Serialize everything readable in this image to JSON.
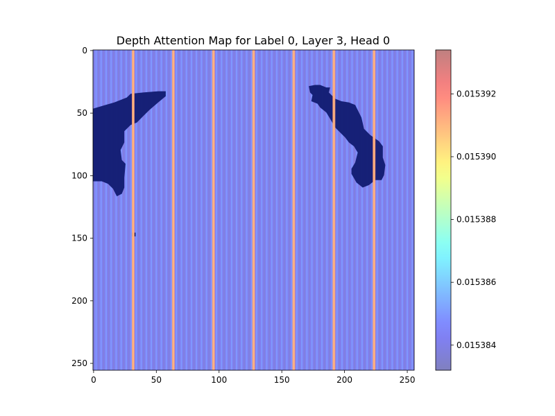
{
  "chart_data": {
    "type": "heatmap",
    "title": "Depth Attention Map for Label 0, Layer 3, Head 0",
    "xlabel": "",
    "ylabel": "",
    "xlim": [
      0,
      256
    ],
    "ylim": [
      256,
      0
    ],
    "x_ticks": [
      0,
      50,
      100,
      150,
      200,
      250
    ],
    "y_ticks": [
      0,
      50,
      100,
      150,
      200,
      250
    ],
    "colorbar": {
      "colormap": "jet",
      "alpha": 0.5,
      "range": [
        0.0153832,
        0.0153934
      ],
      "ticks": [
        0.015384,
        0.015386,
        0.015388,
        0.01539,
        0.015392
      ],
      "tick_labels": [
        "0.015384",
        "0.015386",
        "0.015388",
        "0.015390",
        "0.015392"
      ]
    },
    "background_color": "#7a86f0",
    "stripe_period": 4,
    "stripe_values": [
      0.0153838,
      0.015385,
      0.0153842
    ],
    "peak_columns": [
      32,
      64,
      96,
      128,
      160,
      192,
      224
    ],
    "peak_value": 0.015391,
    "dark_regions": [
      {
        "name": "left-blob",
        "color": "#101a70",
        "points": [
          [
            0,
            47
          ],
          [
            10,
            44
          ],
          [
            17,
            42
          ],
          [
            27,
            38
          ],
          [
            30,
            35
          ],
          [
            40,
            34
          ],
          [
            52,
            33
          ],
          [
            58,
            33
          ],
          [
            58,
            37
          ],
          [
            52,
            42
          ],
          [
            45,
            48
          ],
          [
            40,
            53
          ],
          [
            35,
            58
          ],
          [
            30,
            60
          ],
          [
            25,
            65
          ],
          [
            25,
            74
          ],
          [
            22,
            80
          ],
          [
            23,
            88
          ],
          [
            26,
            91
          ],
          [
            25,
            102
          ],
          [
            25,
            110
          ],
          [
            23,
            115
          ],
          [
            19,
            117
          ],
          [
            16,
            111
          ],
          [
            12,
            107
          ],
          [
            7,
            105
          ],
          [
            0,
            105
          ]
        ]
      },
      {
        "name": "right-blob",
        "color": "#101a70",
        "points": [
          [
            172,
            29
          ],
          [
            177,
            28
          ],
          [
            181,
            28
          ],
          [
            186,
            30
          ],
          [
            189,
            30
          ],
          [
            188,
            34
          ],
          [
            193,
            39
          ],
          [
            198,
            41
          ],
          [
            204,
            42
          ],
          [
            209,
            44
          ],
          [
            211,
            48
          ],
          [
            214,
            54
          ],
          [
            216,
            63
          ],
          [
            221,
            68
          ],
          [
            228,
            73
          ],
          [
            231,
            77
          ],
          [
            231,
            86
          ],
          [
            233,
            92
          ],
          [
            232,
            100
          ],
          [
            230,
            104
          ],
          [
            225,
            104
          ],
          [
            220,
            108
          ],
          [
            215,
            110
          ],
          [
            210,
            106
          ],
          [
            206,
            99
          ],
          [
            206,
            95
          ],
          [
            209,
            90
          ],
          [
            211,
            82
          ],
          [
            208,
            77
          ],
          [
            204,
            74
          ],
          [
            201,
            70
          ],
          [
            197,
            66
          ],
          [
            193,
            62
          ],
          [
            189,
            55
          ],
          [
            186,
            50
          ],
          [
            181,
            46
          ],
          [
            179,
            43
          ],
          [
            174,
            41
          ],
          [
            175,
            36
          ],
          [
            173,
            34
          ]
        ]
      },
      {
        "name": "small-dot",
        "color": "#101a70",
        "points": [
          [
            31,
            146
          ],
          [
            34,
            146
          ],
          [
            34,
            149
          ],
          [
            31,
            149
          ]
        ]
      }
    ]
  }
}
